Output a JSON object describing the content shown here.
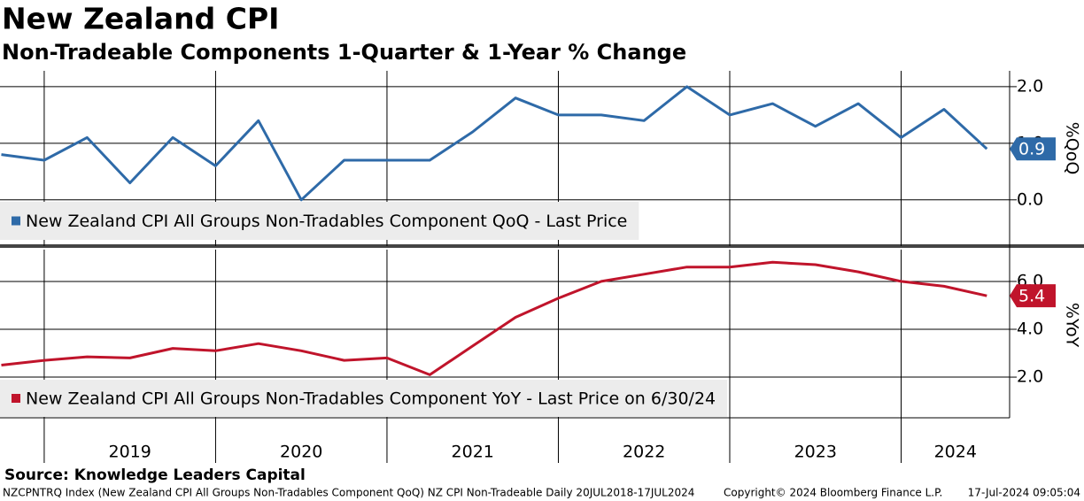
{
  "title": "New Zealand CPI",
  "subtitle": "Non-Tradeable Components 1-Quarter & 1-Year % Change",
  "source": "Source: Knowledge Leaders Capital",
  "footer": {
    "left": "NZCPNTRQ Index (New Zealand CPI All Groups Non-Tradables Component QoQ) NZ CPI Non-Tradeable  Daily 20JUL2018-17JUL2024",
    "middle": "Copyright© 2024 Bloomberg Finance L.P.",
    "right": "17-Jul-2024 09:05:04"
  },
  "chart_data": [
    {
      "type": "line",
      "y_label": "%QoQ",
      "x": [
        2018.75,
        2019.0,
        2019.25,
        2019.5,
        2019.75,
        2020.0,
        2020.25,
        2020.5,
        2020.75,
        2021.0,
        2021.25,
        2021.5,
        2021.75,
        2022.0,
        2022.25,
        2022.5,
        2022.75,
        2023.0,
        2023.25,
        2023.5,
        2023.75,
        2024.0,
        2024.25,
        2024.5
      ],
      "xlim": [
        2018.742,
        2024.633
      ],
      "xticks": [
        {
          "value": 2019,
          "label": "2019"
        },
        {
          "value": 2020,
          "label": "2020"
        },
        {
          "value": 2021,
          "label": "2021"
        },
        {
          "value": 2022,
          "label": "2022"
        },
        {
          "value": 2023,
          "label": "2023"
        },
        {
          "value": 2024,
          "label": "2024"
        }
      ],
      "series": [
        {
          "name": "New Zealand CPI All Groups Non-Tradables Component QoQ - Last Price",
          "color": "#2e6aa8",
          "values": [
            0.8,
            0.7,
            1.1,
            0.3,
            1.1,
            0.6,
            1.4,
            0.0,
            0.7,
            0.7,
            0.7,
            1.2,
            1.8,
            1.5,
            1.5,
            1.4,
            2.0,
            1.5,
            1.7,
            1.3,
            1.7,
            1.1,
            1.6,
            0.9
          ]
        }
      ],
      "ylim": [
        -0.77,
        2.28
      ],
      "yticks": [
        {
          "value": 0,
          "label": "0.0"
        },
        {
          "value": 1,
          "label": "1.0"
        },
        {
          "value": 2,
          "label": "2.0"
        }
      ],
      "grid": true
    },
    {
      "type": "line",
      "y_label": "%YoY",
      "x": [
        2018.75,
        2019.0,
        2019.25,
        2019.5,
        2019.75,
        2020.0,
        2020.25,
        2020.5,
        2020.75,
        2021.0,
        2021.25,
        2021.5,
        2021.75,
        2022.0,
        2022.25,
        2022.5,
        2022.75,
        2023.0,
        2023.25,
        2023.5,
        2023.75,
        2024.0,
        2024.25,
        2024.5
      ],
      "xlim": [
        2018.742,
        2024.633
      ],
      "xticks": [
        {
          "value": 2019,
          "label": "2019"
        },
        {
          "value": 2020,
          "label": "2020"
        },
        {
          "value": 2021,
          "label": "2021"
        },
        {
          "value": 2022,
          "label": "2022"
        },
        {
          "value": 2023,
          "label": "2023"
        },
        {
          "value": 2024,
          "label": "2024"
        }
      ],
      "series": [
        {
          "name": "New Zealand CPI All Groups Non-Tradables Component YoY - Last Price on 6/30/24",
          "color": "#c0142b",
          "values": [
            2.5,
            2.7,
            2.85,
            2.8,
            3.2,
            3.1,
            3.4,
            3.1,
            2.7,
            2.8,
            2.1,
            3.3,
            4.5,
            5.3,
            6.0,
            6.3,
            6.6,
            6.6,
            6.8,
            6.7,
            6.4,
            6.0,
            5.8,
            5.4
          ]
        }
      ],
      "ylim": [
        0.3,
        7.33
      ],
      "yticks": [
        {
          "value": 2,
          "label": "2.0"
        },
        {
          "value": 4,
          "label": "4.0"
        },
        {
          "value": 6,
          "label": "6.0"
        }
      ],
      "grid": true
    }
  ]
}
